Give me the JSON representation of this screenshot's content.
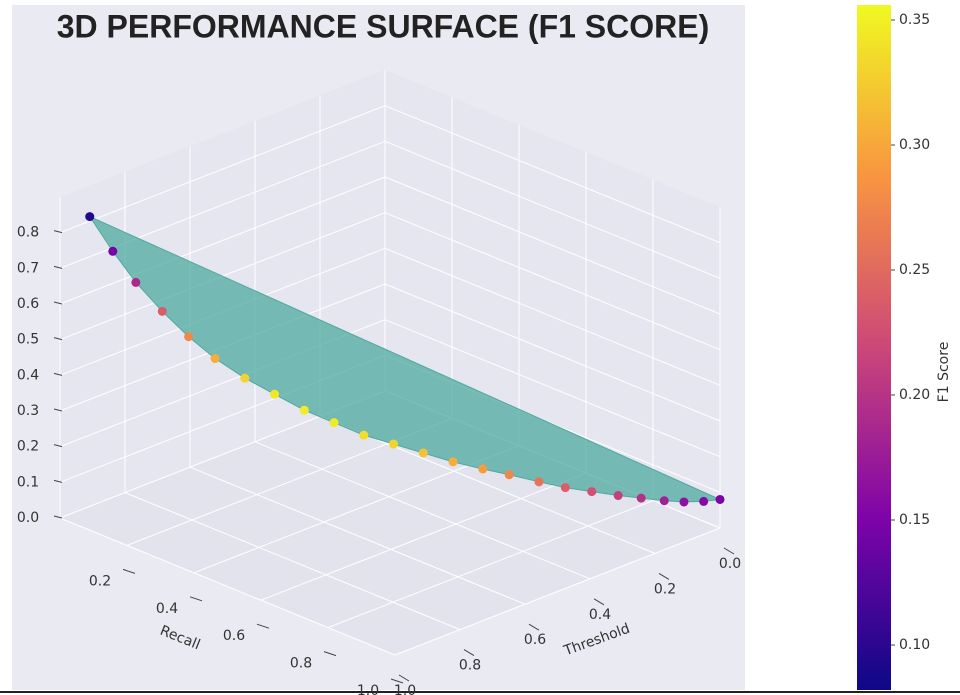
{
  "chart_data": {
    "type": "scatter3d",
    "title": "3D PERFORMANCE SURFACE (F1 SCORE)",
    "xlabel": "Recall",
    "ylabel": "Threshold",
    "colorbar_label": "F1 Score",
    "x": [
      0.05,
      0.08,
      0.11,
      0.15,
      0.19,
      0.23,
      0.28,
      0.33,
      0.38,
      0.43,
      0.48,
      0.53,
      0.58,
      0.63,
      0.68,
      0.72,
      0.77,
      0.81,
      0.85,
      0.89,
      0.92,
      0.95,
      0.97,
      0.99,
      1.0
    ],
    "y": [
      0.96,
      0.92,
      0.88,
      0.84,
      0.8,
      0.76,
      0.72,
      0.68,
      0.64,
      0.6,
      0.56,
      0.52,
      0.48,
      0.44,
      0.4,
      0.36,
      0.32,
      0.28,
      0.24,
      0.2,
      0.16,
      0.12,
      0.08,
      0.04,
      0.0
    ],
    "z": [
      0.85,
      0.75,
      0.66,
      0.58,
      0.51,
      0.45,
      0.4,
      0.36,
      0.32,
      0.29,
      0.26,
      0.24,
      0.22,
      0.2,
      0.185,
      0.17,
      0.155,
      0.14,
      0.13,
      0.12,
      0.11,
      0.1,
      0.09,
      0.085,
      0.08
    ],
    "color_values": [
      0.094,
      0.145,
      0.189,
      0.238,
      0.277,
      0.304,
      0.329,
      0.344,
      0.347,
      0.346,
      0.337,
      0.33,
      0.319,
      0.304,
      0.291,
      0.275,
      0.258,
      0.239,
      0.226,
      0.211,
      0.197,
      0.181,
      0.165,
      0.157,
      0.148
    ],
    "colormap": [
      "#0d0887",
      "#7e03a8",
      "#cc4778",
      "#f89540",
      "#f0f921"
    ],
    "surface_color": "#4fa9a0",
    "xlim": [
      0,
      1
    ],
    "ylim": [
      0,
      1
    ],
    "zlim": [
      0,
      0.9
    ],
    "xticks": [
      0.2,
      0.4,
      0.6,
      0.8,
      {
        "value": 1,
        "label": "1.0"
      }
    ],
    "yticks": [
      {
        "value": 0,
        "label": "0.0"
      },
      0.2,
      0.4,
      0.6,
      0.8,
      {
        "value": 1,
        "label": "1.0"
      }
    ],
    "zticks": [
      {
        "value": 0,
        "label": "0.0"
      },
      0.1,
      0.2,
      0.3,
      0.4,
      0.5,
      0.6,
      0.7,
      0.8
    ],
    "clim": [
      0.082,
      0.356
    ],
    "cticks": [
      {
        "value": 0.1,
        "label": "0.10"
      },
      0.15,
      {
        "value": 0.2,
        "label": "0.20"
      },
      0.25,
      {
        "value": 0.3,
        "label": "0.30"
      },
      0.35
    ],
    "grid": true
  }
}
